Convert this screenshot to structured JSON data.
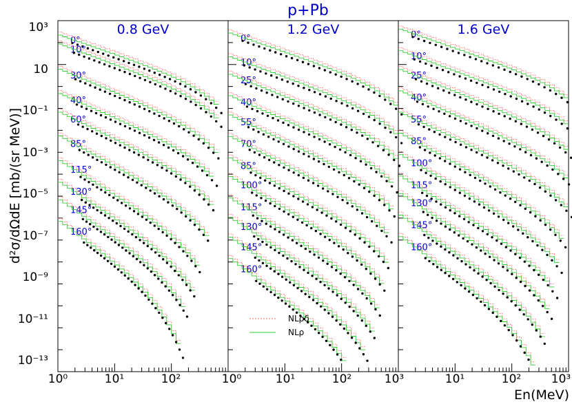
{
  "chart_data": {
    "type": "line",
    "title": "p+Pb",
    "ylabel": "d²σ/dΩdE [mb/(sr MeV)]",
    "xlabel": "En(MeV)",
    "xscale": "log",
    "yscale": "log",
    "xlim": [
      1,
      1000
    ],
    "ylim": [
      1e-13,
      1000
    ],
    "x_tick_labels": [
      "10⁰",
      "10¹",
      "10²",
      "10³"
    ],
    "y_tick_labels": [
      "10³",
      "10",
      "10⁻¹",
      "10⁻³",
      "10⁻⁵",
      "10⁻⁷",
      "10⁻⁹",
      "10⁻¹¹",
      "10⁻¹³"
    ],
    "legend": {
      "placement": "bottom-left of middle panel",
      "entries": [
        {
          "label": "NLρδ",
          "color": "#ff6666",
          "style": "dotted"
        },
        {
          "label": "NLρ",
          "color": "#33cc33",
          "style": "solid"
        }
      ]
    },
    "series_colors": {
      "data": "#000000",
      "NLrd": "#ff6666",
      "NLr": "#33cc33"
    },
    "panels": [
      {
        "title": "0.8 GeV",
        "energy_max": 800,
        "angles": [
          "0°",
          "10°",
          "30°",
          "40°",
          "60°",
          "85°",
          "115°",
          "130°",
          "145°",
          "160°"
        ],
        "start_values": [
          80,
          30,
          2,
          0.15,
          0.02,
          0.0015,
          0.0001,
          1e-05,
          1.5e-06,
          1.5e-07
        ]
      },
      {
        "title": "1.2 GeV",
        "energy_max": 1200,
        "angles": [
          "0°",
          "10°",
          "25°",
          "40°",
          "55°",
          "70°",
          "85°",
          "100°",
          "115°",
          "130°",
          "145°",
          "160°"
        ],
        "start_values": [
          100,
          8,
          1.2,
          0.12,
          0.015,
          0.0015,
          0.00015,
          2e-05,
          2e-06,
          2.5e-07,
          3e-08,
          3e-09
        ]
      },
      {
        "title": "1.6 GeV",
        "energy_max": 1600,
        "angles": [
          "0°",
          "10°",
          "25°",
          "40°",
          "55°",
          "85°",
          "100°",
          "115°",
          "130°",
          "145°",
          "160°"
        ],
        "start_values": [
          150,
          15,
          2,
          0.2,
          0.02,
          0.002,
          0.0002,
          2e-05,
          3e-06,
          3e-07,
          3e-08
        ]
      }
    ]
  }
}
